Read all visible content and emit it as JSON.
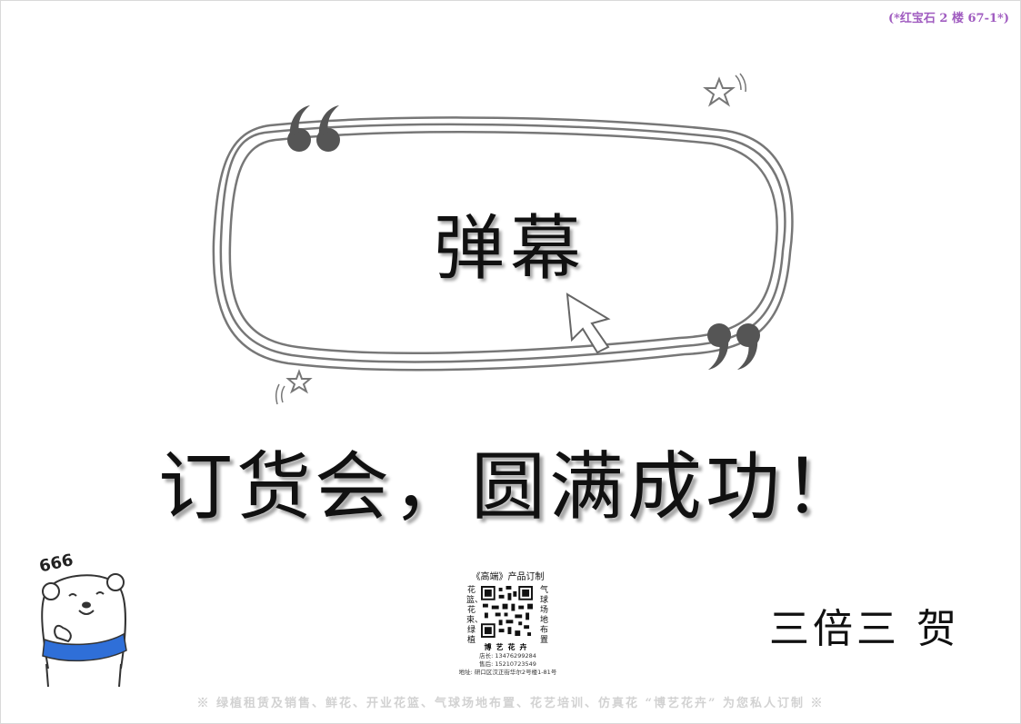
{
  "corner_tag": "(*红宝石 2 楼 67-1*)",
  "bubble": {
    "title": "弹幕",
    "open_quote": "“",
    "close_quote": "”"
  },
  "slogan": "订货会，圆满成功！",
  "sender": "三倍三 贺",
  "bear": {
    "label": "666"
  },
  "qr_card": {
    "heading": "《高端》产品订制",
    "left_text": "花篮、花束、绿植",
    "right_text": "气球场地布置",
    "brand": "博艺花卉",
    "lines": [
      "店长: 13476299284",
      "售后: 15210723549",
      "地址: 研口区汉正街华尔2号楼1-81号"
    ]
  },
  "footer": "※ 绿植租赁及销售、鲜花、开业花篮、气球场地布置、花艺培训、仿真花 “博艺花卉” 为您私人订制 ※",
  "colors": {
    "tag": "#a05cc0",
    "frame": "#777777",
    "scarf": "#2f6fd8",
    "footer": "#d2d2d2"
  }
}
